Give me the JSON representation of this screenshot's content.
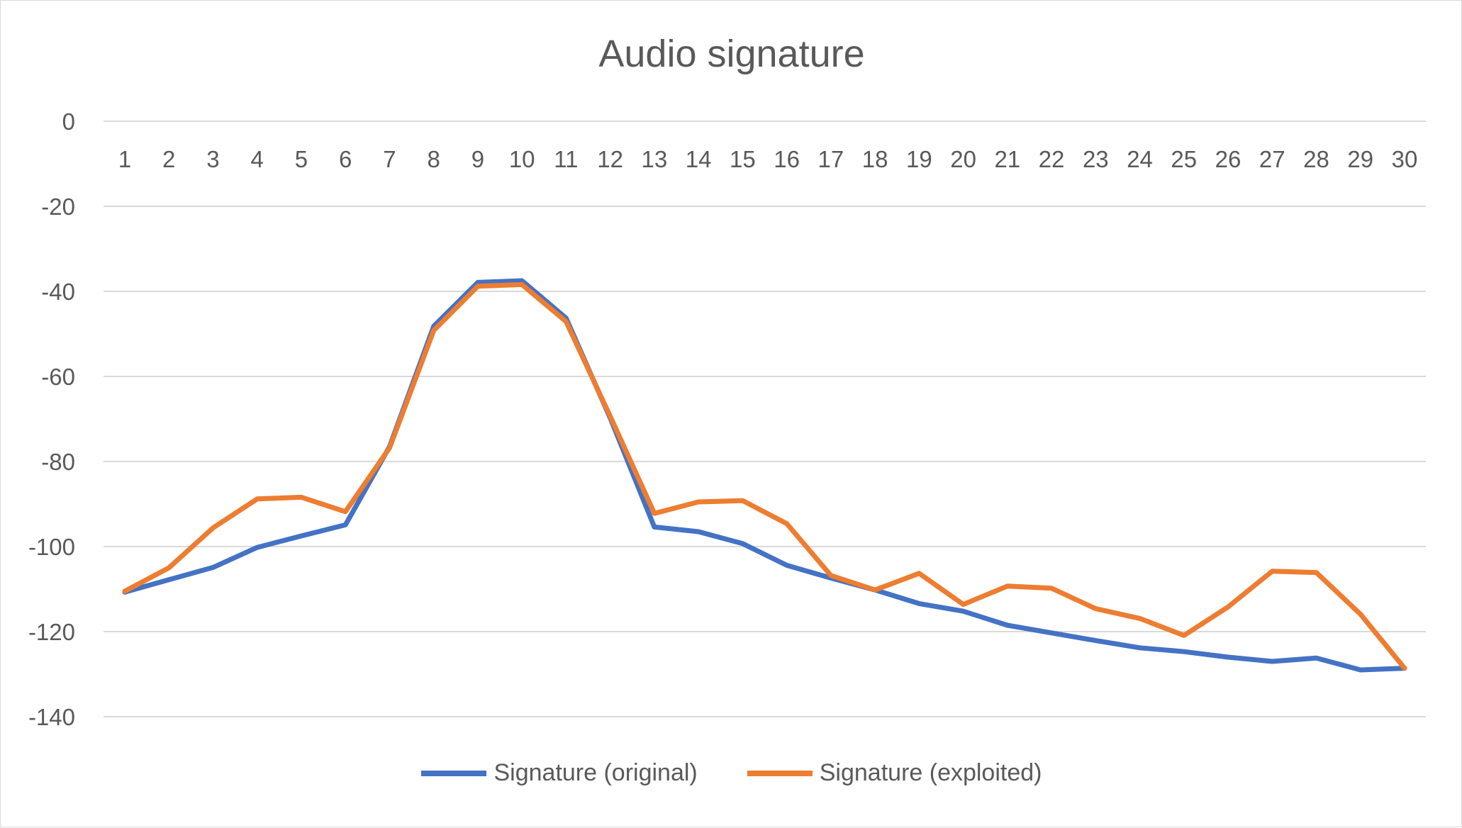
{
  "chart_data": {
    "type": "line",
    "title": "Audio signature",
    "xlabel": "",
    "ylabel": "",
    "ylim": [
      -140,
      0
    ],
    "yticks": [
      0,
      -20,
      -40,
      -60,
      -80,
      -100,
      -120,
      -140
    ],
    "categories": [
      "1",
      "2",
      "3",
      "4",
      "5",
      "6",
      "7",
      "8",
      "9",
      "10",
      "11",
      "12",
      "13",
      "14",
      "15",
      "16",
      "17",
      "18",
      "19",
      "20",
      "21",
      "22",
      "23",
      "24",
      "25",
      "26",
      "27",
      "28",
      "29",
      "30"
    ],
    "grid": "horizontal",
    "legend_position": "bottom",
    "series": [
      {
        "name": "Signature (original)",
        "color": "#4472C4",
        "values": [
          -110.7,
          -107.8,
          -104.9,
          -100.2,
          -97.5,
          -94.9,
          -76.5,
          -48.2,
          -37.9,
          -37.5,
          -46.3,
          -69.8,
          -95.4,
          -96.5,
          -99.3,
          -104.4,
          -107.4,
          -110.2,
          -113.4,
          -115.2,
          -118.5,
          -120.3,
          -122.1,
          -123.8,
          -124.7,
          -126.0,
          -127.0,
          -126.2,
          -129.0,
          -128.6
        ]
      },
      {
        "name": "Signature (exploited)",
        "color": "#ED7D31",
        "values": [
          -110.5,
          -105.0,
          -95.6,
          -88.8,
          -88.4,
          -91.8,
          -76.8,
          -49.2,
          -38.8,
          -38.4,
          -47.1,
          -69.4,
          -92.2,
          -89.5,
          -89.2,
          -94.6,
          -106.8,
          -110.2,
          -106.3,
          -113.6,
          -109.3,
          -109.8,
          -114.6,
          -116.9,
          -120.9,
          -114.2,
          -105.8,
          -106.1,
          -115.9,
          -128.6
        ]
      }
    ]
  }
}
